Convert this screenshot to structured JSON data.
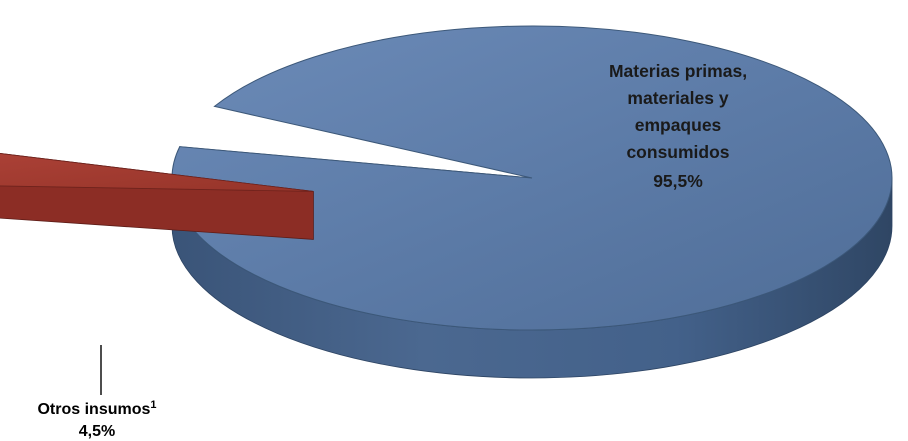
{
  "chart_data": {
    "type": "pie",
    "style": "3d-exploded",
    "slices": [
      {
        "name": "Materias primas, materiales y empaques consumidos",
        "label_lines": [
          "Materias primas,",
          "materiales y",
          "empaques",
          "consumidos"
        ],
        "value": 95.5,
        "value_label": "95,5%",
        "color": "#5b7aa6",
        "side_color": "#3e5a80"
      },
      {
        "name": "Otros insumos",
        "label_lines": [
          "Otros insumos"
        ],
        "superscript": "1",
        "value": 4.5,
        "value_label": "4,5%",
        "color": "#a23b32",
        "side_color": "#7a2620"
      }
    ],
    "legend": "none"
  }
}
